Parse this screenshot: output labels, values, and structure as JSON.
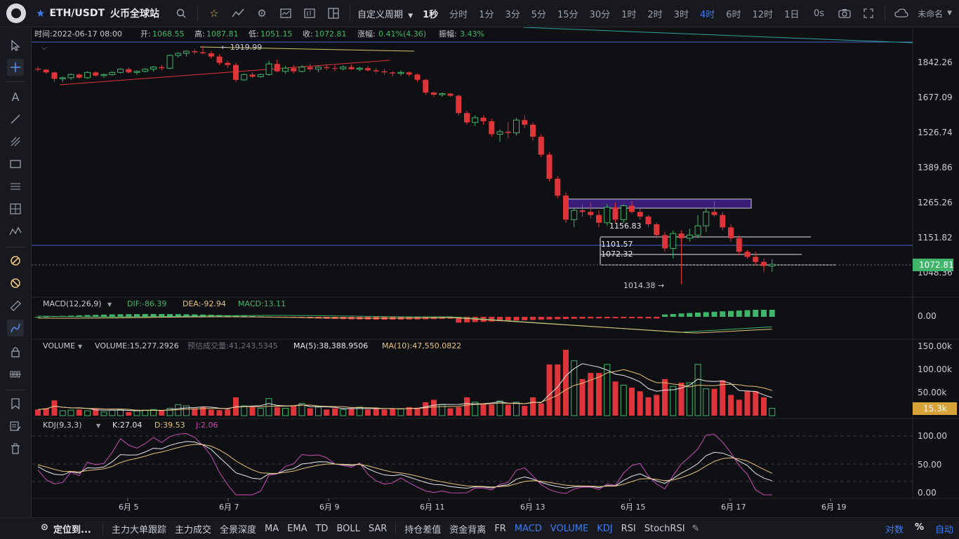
{
  "app": {
    "symbol": "ETH/USDT",
    "exchange": "火币全球站"
  },
  "toolbar": {
    "custom_period": "自定义周期",
    "intervals": [
      "1秒",
      "分时",
      "1分",
      "3分",
      "5分",
      "15分",
      "30分",
      "1时",
      "2时",
      "3时",
      "4时",
      "6时",
      "12时",
      "1日"
    ],
    "active_interval": "4时",
    "zero_s": "0s",
    "username": "未命名"
  },
  "ohlc": {
    "time_label": "时间:2022-06-17 08:00",
    "open_label": "开:",
    "open": "1068.55",
    "high_label": "高:",
    "high": "1087.81",
    "low_label": "低:",
    "low": "1051.15",
    "close_label": "收:",
    "close": "1072.81",
    "change_label": "涨幅:",
    "change": "0.41%(4.36)",
    "amp_label": "振幅:",
    "amp": "3.43%"
  },
  "price_axis": [
    "1842.26",
    "1677.09",
    "1526.74",
    "1389.86",
    "1265.26",
    "1151.82",
    "1048.36"
  ],
  "current_price": "1072.81",
  "annotations": {
    "high_marker": "← 1919.99",
    "low_marker": "1014.38 →",
    "level_1156": "1156.83",
    "level_1101": "1101.57",
    "level_1072": "1072.32"
  },
  "macd": {
    "title": "MACD(12,26,9)",
    "dif": "DIF:-86.39",
    "dea": "DEA:-92.94",
    "macd": "MACD:13.11",
    "axis": [
      "0.00"
    ]
  },
  "volume": {
    "title": "VOLUME",
    "vol": "VOLUME:15,277.2926",
    "est": "预估成交量:41,243.5345",
    "ma5": "MA(5):38,388.9506",
    "ma10": "MA(10):47,550.0822",
    "axis": [
      "150.00k",
      "100.00k",
      "50.00k"
    ],
    "current": "15.3k"
  },
  "kdj": {
    "title": "KDJ(9,3,3)",
    "k": "K:27.04",
    "d": "D:39.53",
    "j": "J:2.06",
    "axis": [
      "100.00",
      "50.00",
      "0.00"
    ]
  },
  "x_axis": [
    "6月 5",
    "6月 7",
    "6月 9",
    "6月 11",
    "6月 13",
    "6月 15",
    "6月 17",
    "6月 19"
  ],
  "bottom": {
    "locate": "定位到...",
    "indicators": [
      "主力大单跟踪",
      "主力成交",
      "全景深度",
      "MA",
      "EMA",
      "TD",
      "BOLL",
      "SAR",
      "持仓差值",
      "资金背离",
      "FR",
      "MACD",
      "VOLUME",
      "KDJ",
      "RSI",
      "StochRSI"
    ],
    "active_indicators": [
      "MACD",
      "VOLUME",
      "KDJ"
    ],
    "log": "对数",
    "pct": "%",
    "auto": "自动"
  },
  "colors": {
    "up": "#3fb56b",
    "down": "#e0343b",
    "accent": "#3d7bf2",
    "price_tag": "#3fb56b",
    "vol_tag": "#d8a43a",
    "bg": "#0f1013"
  },
  "candles": [
    [
      1812,
      1822,
      1800,
      1808
    ],
    [
      1808,
      1812,
      1788,
      1795
    ],
    [
      1795,
      1798,
      1750,
      1765
    ],
    [
      1765,
      1775,
      1750,
      1770
    ],
    [
      1770,
      1790,
      1760,
      1785
    ],
    [
      1785,
      1790,
      1765,
      1770
    ],
    [
      1770,
      1800,
      1765,
      1795
    ],
    [
      1795,
      1800,
      1775,
      1780
    ],
    [
      1780,
      1790,
      1770,
      1785
    ],
    [
      1785,
      1800,
      1780,
      1795
    ],
    [
      1795,
      1815,
      1790,
      1810
    ],
    [
      1810,
      1820,
      1790,
      1795
    ],
    [
      1795,
      1805,
      1785,
      1800
    ],
    [
      1800,
      1815,
      1795,
      1810
    ],
    [
      1810,
      1825,
      1800,
      1820
    ],
    [
      1820,
      1830,
      1805,
      1815
    ],
    [
      1815,
      1880,
      1810,
      1875
    ],
    [
      1875,
      1890,
      1865,
      1885
    ],
    [
      1885,
      1900,
      1870,
      1895
    ],
    [
      1895,
      1905,
      1880,
      1890
    ],
    [
      1890,
      1920,
      1880,
      1885
    ],
    [
      1885,
      1895,
      1860,
      1870
    ],
    [
      1870,
      1880,
      1830,
      1840
    ],
    [
      1840,
      1850,
      1815,
      1830
    ],
    [
      1830,
      1840,
      1750,
      1760
    ],
    [
      1760,
      1790,
      1755,
      1785
    ],
    [
      1785,
      1795,
      1770,
      1775
    ],
    [
      1775,
      1790,
      1770,
      1785
    ],
    [
      1785,
      1850,
      1780,
      1835
    ],
    [
      1835,
      1855,
      1795,
      1800
    ],
    [
      1800,
      1825,
      1790,
      1815
    ],
    [
      1815,
      1830,
      1790,
      1800
    ],
    [
      1800,
      1830,
      1795,
      1820
    ],
    [
      1820,
      1835,
      1800,
      1810
    ],
    [
      1810,
      1825,
      1795,
      1820
    ],
    [
      1820,
      1830,
      1805,
      1815
    ],
    [
      1815,
      1830,
      1800,
      1812
    ],
    [
      1812,
      1828,
      1805,
      1820
    ],
    [
      1820,
      1832,
      1808,
      1810
    ],
    [
      1810,
      1822,
      1800,
      1815
    ],
    [
      1815,
      1825,
      1800,
      1805
    ],
    [
      1805,
      1815,
      1790,
      1800
    ],
    [
      1800,
      1810,
      1785,
      1795
    ],
    [
      1795,
      1800,
      1775,
      1790
    ],
    [
      1790,
      1805,
      1780,
      1795
    ],
    [
      1795,
      1800,
      1775,
      1785
    ],
    [
      1785,
      1790,
      1750,
      1760
    ],
    [
      1760,
      1765,
      1690,
      1700
    ],
    [
      1700,
      1705,
      1680,
      1690
    ],
    [
      1690,
      1700,
      1680,
      1695
    ],
    [
      1695,
      1700,
      1680,
      1685
    ],
    [
      1685,
      1690,
      1600,
      1610
    ],
    [
      1610,
      1620,
      1560,
      1570
    ],
    [
      1570,
      1600,
      1555,
      1590
    ],
    [
      1590,
      1600,
      1560,
      1575
    ],
    [
      1575,
      1585,
      1510,
      1520
    ],
    [
      1520,
      1540,
      1490,
      1530
    ],
    [
      1530,
      1570,
      1505,
      1525
    ],
    [
      1525,
      1590,
      1515,
      1580
    ],
    [
      1580,
      1600,
      1545,
      1560
    ],
    [
      1560,
      1570,
      1495,
      1510
    ],
    [
      1510,
      1520,
      1430,
      1440
    ],
    [
      1440,
      1450,
      1340,
      1350
    ],
    [
      1350,
      1360,
      1280,
      1290
    ],
    [
      1290,
      1300,
      1200,
      1210
    ],
    [
      1210,
      1250,
      1185,
      1240
    ],
    [
      1240,
      1260,
      1220,
      1235
    ],
    [
      1235,
      1265,
      1215,
      1225
    ],
    [
      1225,
      1240,
      1185,
      1200
    ],
    [
      1200,
      1260,
      1190,
      1250
    ],
    [
      1250,
      1265,
      1200,
      1210
    ],
    [
      1210,
      1260,
      1200,
      1255
    ],
    [
      1255,
      1270,
      1230,
      1235
    ],
    [
      1235,
      1245,
      1210,
      1220
    ],
    [
      1220,
      1225,
      1185,
      1195
    ],
    [
      1195,
      1200,
      1150,
      1160
    ],
    [
      1160,
      1170,
      1110,
      1120
    ],
    [
      1120,
      1175,
      1090,
      1165
    ],
    [
      1165,
      1175,
      1014,
      1150
    ],
    [
      1150,
      1180,
      1140,
      1160
    ],
    [
      1160,
      1225,
      1150,
      1190
    ],
    [
      1190,
      1250,
      1170,
      1235
    ],
    [
      1235,
      1270,
      1220,
      1225
    ],
    [
      1225,
      1235,
      1175,
      1185
    ],
    [
      1185,
      1195,
      1140,
      1150
    ],
    [
      1150,
      1160,
      1100,
      1110
    ],
    [
      1110,
      1115,
      1090,
      1095
    ],
    [
      1095,
      1110,
      1070,
      1080
    ],
    [
      1080,
      1090,
      1050,
      1068
    ],
    [
      1068,
      1088,
      1051,
      1073
    ]
  ],
  "chart_data": {
    "type": "candlestick",
    "title": "ETH/USDT 4时",
    "x_ticks": [
      "6月 5",
      "6月 7",
      "6月 9",
      "6月 11",
      "6月 13",
      "6月 15",
      "6月 17",
      "6月 19"
    ],
    "y_ticks": [
      1842.26,
      1677.09,
      1526.74,
      1389.86,
      1265.26,
      1151.82,
      1048.36
    ],
    "last": {
      "open": 1068.55,
      "high": 1087.81,
      "low": 1051.15,
      "close": 1072.81
    },
    "period_high": 1919.99,
    "period_low": 1014.38
  }
}
